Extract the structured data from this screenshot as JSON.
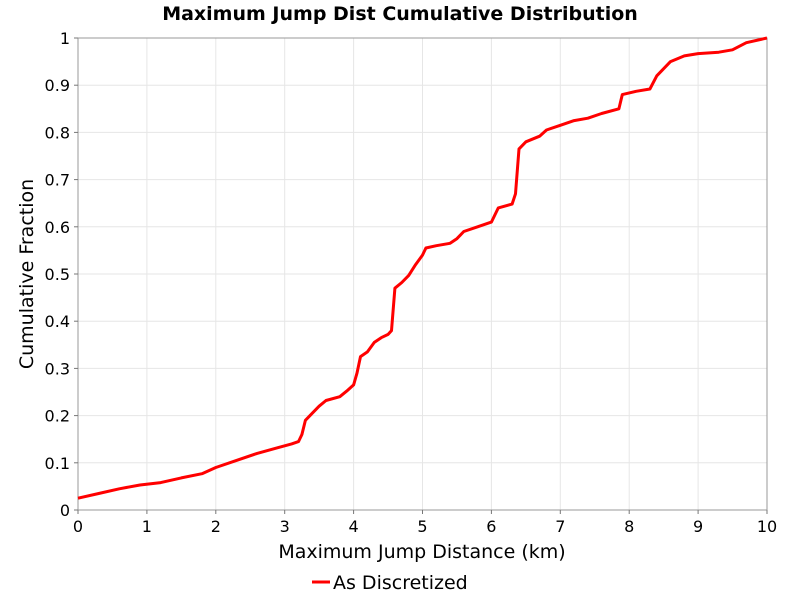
{
  "chart_data": {
    "type": "line",
    "title": "Maximum Jump Dist Cumulative Distribution",
    "xlabel": "Maximum Jump Distance (km)",
    "ylabel": "Cumulative Fraction",
    "xlim": [
      0,
      10
    ],
    "ylim": [
      0,
      1
    ],
    "xticks": [
      0,
      1,
      2,
      3,
      4,
      5,
      6,
      7,
      8,
      9,
      10
    ],
    "yticks": [
      0,
      0.1,
      0.2,
      0.3,
      0.4,
      0.5,
      0.6,
      0.7,
      0.8,
      0.9,
      1
    ],
    "xtick_labels": [
      "0",
      "1",
      "2",
      "3",
      "4",
      "5",
      "6",
      "7",
      "8",
      "9",
      "10"
    ],
    "ytick_labels": [
      "0",
      "0.1",
      "0.2",
      "0.3",
      "0.4",
      "0.5",
      "0.6",
      "0.7",
      "0.8",
      "0.9",
      "1"
    ],
    "grid": true,
    "legend_position": "bottom-center",
    "series": [
      {
        "name": "As Discretized",
        "color": "#ff0000",
        "points": [
          [
            0.0,
            0.025
          ],
          [
            0.3,
            0.035
          ],
          [
            0.6,
            0.045
          ],
          [
            0.9,
            0.053
          ],
          [
            1.2,
            0.058
          ],
          [
            1.5,
            0.068
          ],
          [
            1.8,
            0.077
          ],
          [
            2.0,
            0.09
          ],
          [
            2.3,
            0.105
          ],
          [
            2.6,
            0.12
          ],
          [
            2.9,
            0.132
          ],
          [
            3.1,
            0.14
          ],
          [
            3.2,
            0.145
          ],
          [
            3.25,
            0.16
          ],
          [
            3.3,
            0.19
          ],
          [
            3.4,
            0.205
          ],
          [
            3.5,
            0.22
          ],
          [
            3.6,
            0.232
          ],
          [
            3.8,
            0.24
          ],
          [
            3.9,
            0.252
          ],
          [
            4.0,
            0.265
          ],
          [
            4.05,
            0.29
          ],
          [
            4.1,
            0.325
          ],
          [
            4.2,
            0.335
          ],
          [
            4.3,
            0.355
          ],
          [
            4.4,
            0.365
          ],
          [
            4.5,
            0.372
          ],
          [
            4.55,
            0.38
          ],
          [
            4.6,
            0.47
          ],
          [
            4.7,
            0.482
          ],
          [
            4.8,
            0.497
          ],
          [
            4.9,
            0.52
          ],
          [
            5.0,
            0.54
          ],
          [
            5.05,
            0.555
          ],
          [
            5.2,
            0.56
          ],
          [
            5.4,
            0.565
          ],
          [
            5.5,
            0.575
          ],
          [
            5.6,
            0.59
          ],
          [
            5.8,
            0.6
          ],
          [
            6.0,
            0.61
          ],
          [
            6.1,
            0.64
          ],
          [
            6.3,
            0.648
          ],
          [
            6.35,
            0.67
          ],
          [
            6.4,
            0.765
          ],
          [
            6.5,
            0.78
          ],
          [
            6.7,
            0.792
          ],
          [
            6.8,
            0.805
          ],
          [
            7.0,
            0.815
          ],
          [
            7.2,
            0.825
          ],
          [
            7.4,
            0.83
          ],
          [
            7.6,
            0.84
          ],
          [
            7.85,
            0.85
          ],
          [
            7.9,
            0.88
          ],
          [
            8.1,
            0.887
          ],
          [
            8.3,
            0.892
          ],
          [
            8.4,
            0.92
          ],
          [
            8.6,
            0.95
          ],
          [
            8.8,
            0.962
          ],
          [
            9.0,
            0.967
          ],
          [
            9.3,
            0.97
          ],
          [
            9.5,
            0.975
          ],
          [
            9.7,
            0.99
          ],
          [
            10.0,
            1.0
          ]
        ]
      }
    ]
  }
}
